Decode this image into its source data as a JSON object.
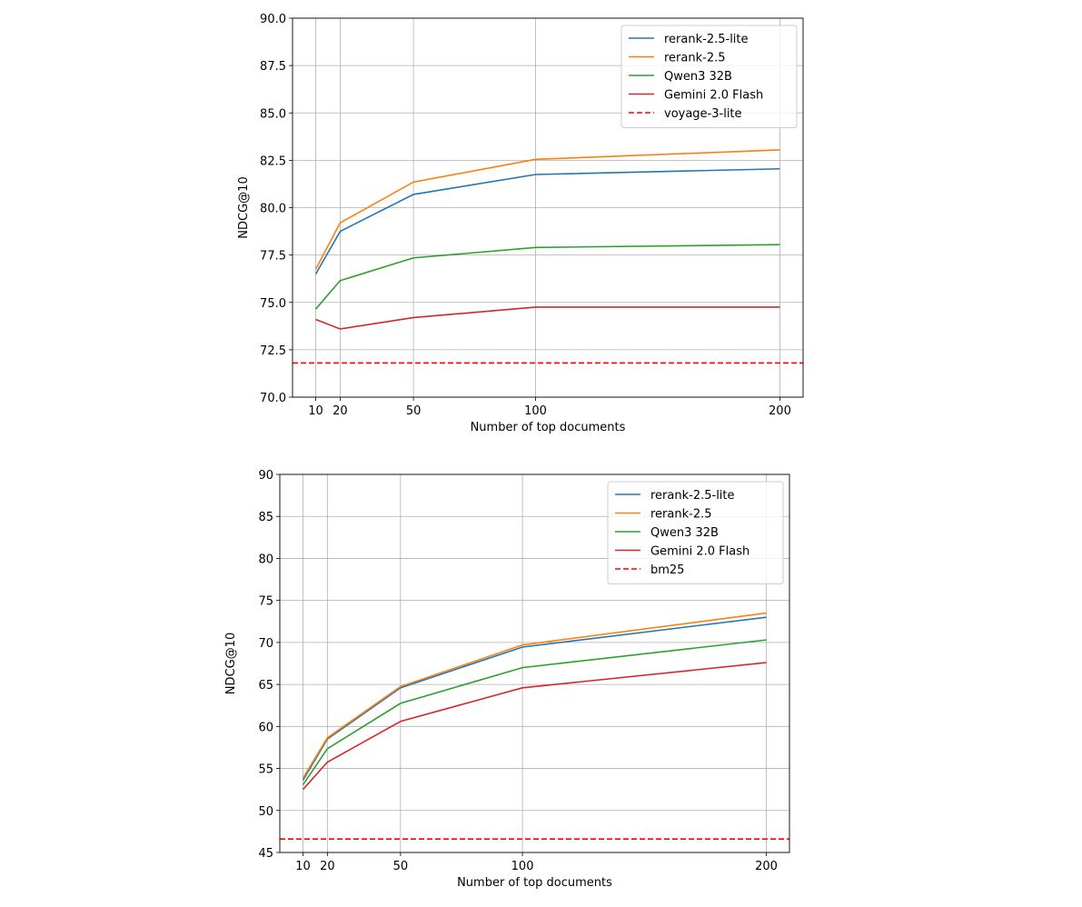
{
  "chart_data": [
    {
      "type": "line",
      "xlabel": "Number of top documents",
      "ylabel": "NDCG@10",
      "x": [
        10,
        20,
        50,
        100,
        200
      ],
      "xticks": [
        10,
        20,
        50,
        100,
        200
      ],
      "yticks": [
        70.0,
        72.5,
        75.0,
        77.5,
        80.0,
        82.5,
        85.0,
        87.5,
        90.0
      ],
      "ytick_labels": [
        "70.0",
        "72.5",
        "75.0",
        "77.5",
        "80.0",
        "82.5",
        "85.0",
        "87.5",
        "90.0"
      ],
      "xlim": [
        0.5,
        209.5
      ],
      "ylim": [
        70,
        90
      ],
      "grid": true,
      "legend_position": "top-right",
      "series": [
        {
          "name": "rerank-2.5-lite",
          "color": "#1f77b4",
          "style": "solid",
          "values": [
            76.5,
            78.75,
            80.7,
            81.75,
            82.05
          ]
        },
        {
          "name": "rerank-2.5",
          "color": "#ff7f0e",
          "style": "solid",
          "values": [
            76.75,
            79.2,
            81.35,
            82.55,
            83.05
          ]
        },
        {
          "name": "Qwen3 32B",
          "color": "#2ca02c",
          "style": "solid",
          "values": [
            74.65,
            76.15,
            77.35,
            77.9,
            78.05
          ]
        },
        {
          "name": "Gemini 2.0 Flash",
          "color": "#d62728",
          "style": "solid",
          "values": [
            74.1,
            73.6,
            74.2,
            74.75,
            74.75
          ]
        },
        {
          "name": "voyage-3-lite",
          "color": "#ff0000",
          "style": "dashed",
          "hline": 71.8
        }
      ]
    },
    {
      "type": "line",
      "xlabel": "Number of top documents",
      "ylabel": "NDCG@10",
      "x": [
        10,
        20,
        50,
        100,
        200
      ],
      "xticks": [
        10,
        20,
        50,
        100,
        200
      ],
      "yticks": [
        45,
        50,
        55,
        60,
        65,
        70,
        75,
        80,
        85,
        90
      ],
      "ytick_labels": [
        "45",
        "50",
        "55",
        "60",
        "65",
        "70",
        "75",
        "80",
        "85",
        "90"
      ],
      "xlim": [
        0.5,
        209.5
      ],
      "ylim": [
        45,
        90
      ],
      "grid": true,
      "legend_position": "top-right",
      "series": [
        {
          "name": "rerank-2.5-lite",
          "color": "#1f77b4",
          "style": "solid",
          "values": [
            53.6,
            58.5,
            64.6,
            69.45,
            73.0
          ]
        },
        {
          "name": "rerank-2.5",
          "color": "#ff7f0e",
          "style": "solid",
          "values": [
            53.85,
            58.65,
            64.75,
            69.7,
            73.5
          ]
        },
        {
          "name": "Qwen3 32B",
          "color": "#2ca02c",
          "style": "solid",
          "values": [
            53.05,
            57.35,
            62.75,
            67.0,
            70.3
          ]
        },
        {
          "name": "Gemini 2.0 Flash",
          "color": "#d62728",
          "style": "solid",
          "values": [
            52.5,
            55.75,
            60.6,
            64.6,
            67.6
          ]
        },
        {
          "name": "bm25",
          "color": "#ff0000",
          "style": "dashed",
          "hline": 46.6
        }
      ]
    }
  ]
}
